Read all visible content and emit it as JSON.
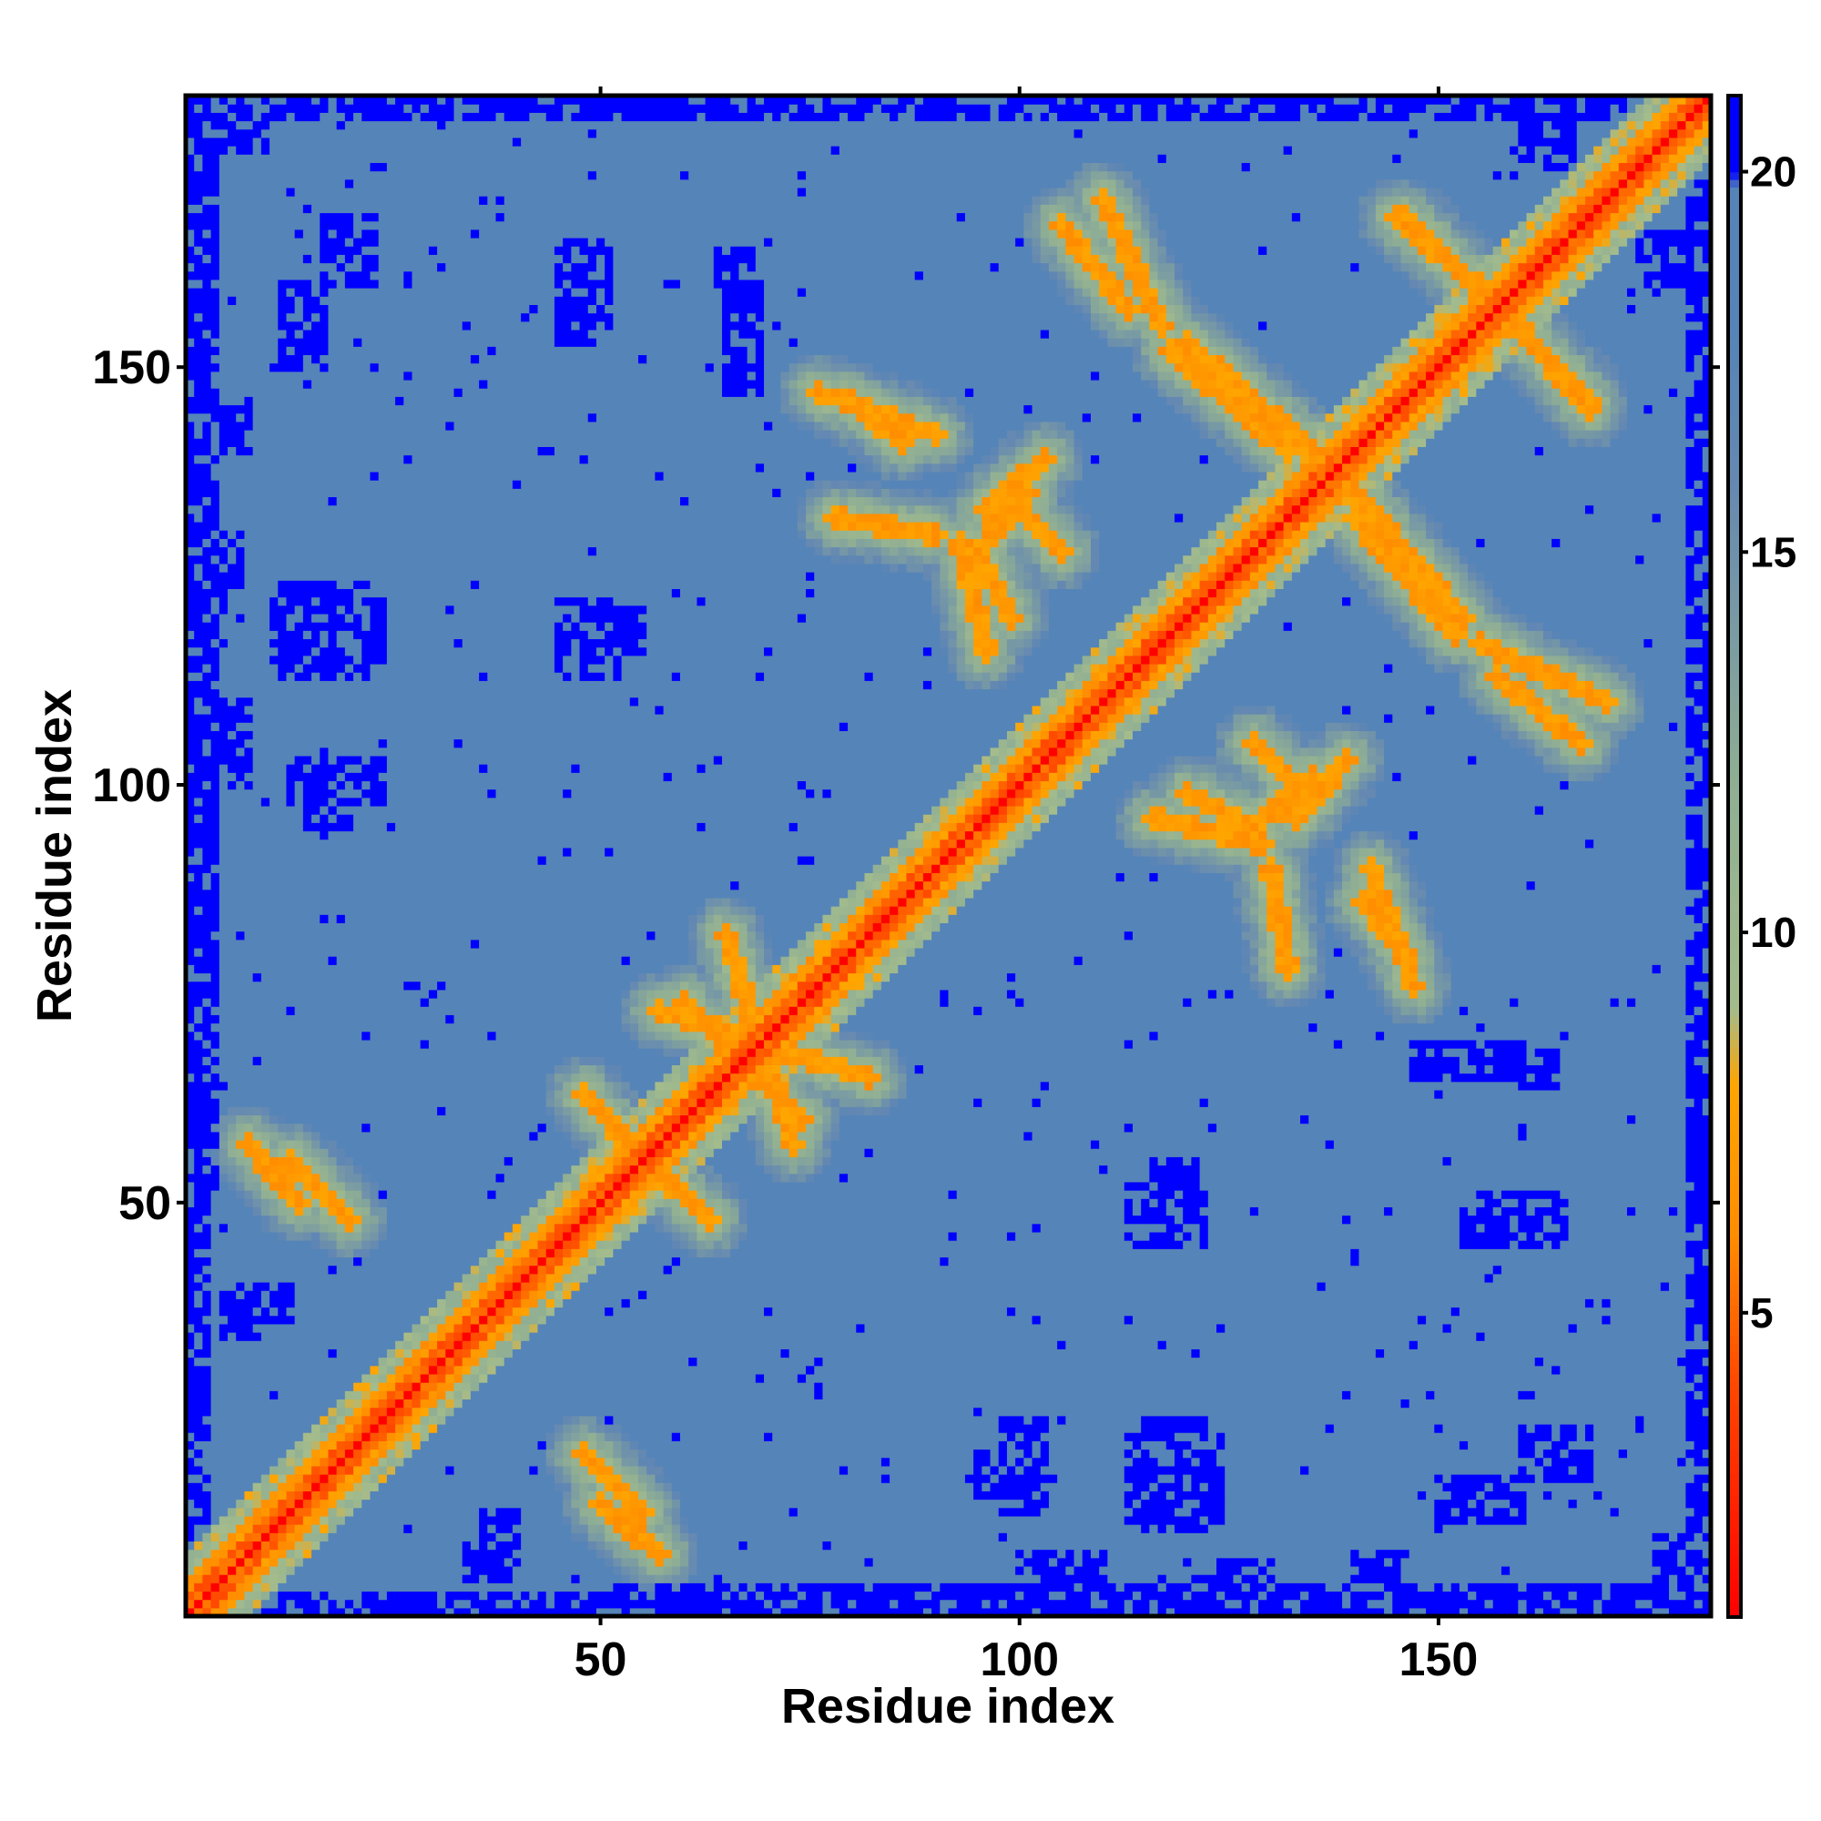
{
  "chart_data": {
    "type": "heatmap",
    "title": "",
    "xlabel": "Residue index",
    "ylabel": "Residue index",
    "n_residues": 182,
    "xlim": [
      1,
      182
    ],
    "ylim": [
      1,
      182
    ],
    "x_ticks": [
      50,
      100,
      150
    ],
    "y_ticks": [
      50,
      100,
      150
    ],
    "colorbar": {
      "range": [
        1,
        21
      ],
      "ticks": [
        5,
        10,
        15,
        20
      ],
      "stops": [
        {
          "value": 1,
          "color": "#ff0000"
        },
        {
          "value": 4,
          "color": "#ff4500"
        },
        {
          "value": 6,
          "color": "#ff8c00"
        },
        {
          "value": 8,
          "color": "#ffa500"
        },
        {
          "value": 9,
          "color": "#a4bc8c"
        },
        {
          "value": 12,
          "color": "#8fae94"
        },
        {
          "value": 16,
          "color": "#6488b2"
        },
        {
          "value": 18,
          "color": "#5584b8"
        },
        {
          "value": 19.8,
          "color": "#5584b8"
        },
        {
          "value": 20,
          "color": "#0000ff"
        },
        {
          "value": 21,
          "color": "#0000ff"
        }
      ]
    },
    "diagonal": {
      "value": 1,
      "color": "#ff0000"
    },
    "near_diagonal_band": {
      "offset_1": 4,
      "offset_2": 6,
      "offset_3": 8
    },
    "contact_arcs": [
      {
        "from": [
          48,
          63
        ],
        "to": [
          58,
          52
        ],
        "min_value": 6
      },
      {
        "from": [
          60,
          74
        ],
        "to": [
          74,
          60
        ],
        "min_value": 6
      },
      {
        "from": [
          65,
          82
        ],
        "to": [
          73,
          57
        ],
        "min_value": 6
      },
      {
        "from": [
          13,
          55
        ],
        "to": [
          20,
          48
        ],
        "min_value": 6
      },
      {
        "from": [
          50,
          14
        ],
        "to": [
          57,
          8
        ],
        "min_value": 6
      },
      {
        "from": [
          110,
          170
        ],
        "to": [
          117,
          155
        ],
        "min_value": 6
      },
      {
        "from": [
          120,
          153
        ],
        "to": [
          135,
          140
        ],
        "min_value": 6
      },
      {
        "from": [
          146,
          168
        ],
        "to": [
          152,
          162
        ],
        "min_value": 6
      },
      {
        "from": [
          155,
          160
        ],
        "to": [
          168,
          145
        ],
        "min_value": 6
      },
      {
        "from": [
          140,
          132
        ],
        "to": [
          152,
          118
        ],
        "min_value": 6
      },
      {
        "from": [
          157,
          113
        ],
        "to": [
          167,
          105
        ],
        "min_value": 6
      },
      {
        "from": [
          98,
          135
        ],
        "to": [
          105,
          128
        ],
        "min_value": 6
      },
      {
        "from": [
          93,
          129
        ],
        "to": [
          96,
          116
        ],
        "min_value": 6
      },
      {
        "from": [
          120,
          99
        ],
        "to": [
          128,
          95
        ],
        "min_value": 6
      },
      {
        "from": [
          128,
          95
        ],
        "to": [
          135,
          101
        ],
        "min_value": 6
      },
      {
        "from": [
          142,
          90
        ],
        "to": [
          147,
          76
        ],
        "min_value": 6
      },
      {
        "from": [
          130,
          90
        ],
        "to": [
          132,
          78
        ],
        "min_value": 6
      },
      {
        "from": [
          80,
          146
        ],
        "to": [
          86,
          141
        ],
        "min_value": 6
      },
      {
        "from": [
          96,
          133
        ],
        "to": [
          103,
          139
        ],
        "min_value": 6
      }
    ],
    "blue_regions": [
      {
        "x": [
          1,
          3
        ],
        "y": [
          1,
          182
        ]
      },
      {
        "x": [
          1,
          182
        ],
        "y": [
          180,
          182
        ]
      },
      {
        "x": [
          50,
          182
        ],
        "y": [
          1,
          4
        ]
      },
      {
        "x": [
          180,
          182
        ],
        "y": [
          60,
          182
        ]
      },
      {
        "x": [
          46,
          51
        ],
        "y": [
          155,
          165
        ]
      },
      {
        "x": [
          64,
          68
        ],
        "y": [
          158,
          164
        ]
      },
      {
        "x": [
          17,
          23
        ],
        "y": [
          160,
          168
        ]
      },
      {
        "x": [
          11,
          24
        ],
        "y": [
          115,
          122
        ]
      },
      {
        "x": [
          47,
          55
        ],
        "y": [
          116,
          121
        ]
      },
      {
        "x": [
          13,
          24
        ],
        "y": [
          98,
          103
        ]
      },
      {
        "x": [
          2,
          8
        ],
        "y": [
          140,
          146
        ]
      },
      {
        "x": [
          2,
          8
        ],
        "y": [
          100,
          110
        ]
      },
      {
        "x": [
          2,
          5
        ],
        "y": [
          120,
          130
        ]
      },
      {
        "x": [
          6,
          13
        ],
        "y": [
          36,
          40
        ]
      },
      {
        "x": [
          113,
          122
        ],
        "y": [
          45,
          52
        ]
      },
      {
        "x": [
          153,
          164
        ],
        "y": [
          45,
          50
        ]
      },
      {
        "x": [
          147,
          160
        ],
        "y": [
          65,
          69
        ]
      },
      {
        "x": [
          113,
          124
        ],
        "y": [
          12,
          22
        ]
      },
      {
        "x": [
          95,
          103
        ],
        "y": [
          15,
          20
        ]
      },
      {
        "x": [
          150,
          160
        ],
        "y": [
          12,
          17
        ]
      },
      {
        "x": [
          124,
          130
        ],
        "y": [
          3,
          7
        ]
      },
      {
        "x": [
          34,
          39
        ],
        "y": [
          5,
          9
        ]
      },
      {
        "x": [
          176,
          182
        ],
        "y": [
          3,
          10
        ]
      },
      {
        "x": [
          160,
          166
        ],
        "y": [
          174,
          180
        ]
      }
    ]
  }
}
